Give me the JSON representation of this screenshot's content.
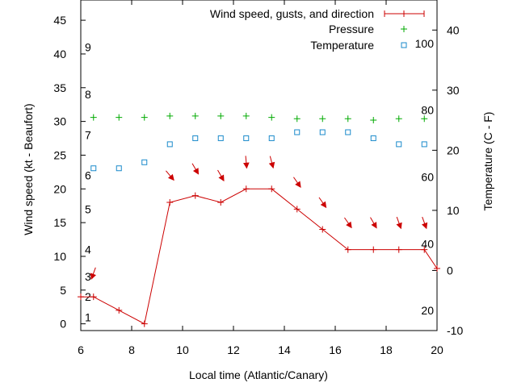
{
  "chart_data": {
    "type": "line",
    "x_axis": {
      "label": "Local time (Atlantic/Canary)",
      "range": [
        6,
        20
      ],
      "ticks": [
        6,
        8,
        10,
        12,
        14,
        16,
        18,
        20
      ]
    },
    "y_left": {
      "label": "Wind speed (kt - Beaufort)",
      "range": [
        -1,
        48
      ],
      "ticks": [
        0,
        5,
        10,
        15,
        20,
        25,
        30,
        35,
        40,
        45
      ]
    },
    "y_right": {
      "label": "Temperature (C - F)",
      "range": [
        -10,
        45
      ],
      "ticks": [
        -10,
        0,
        10,
        20,
        30,
        40
      ]
    },
    "beaufort_labels": [
      {
        "label": "1",
        "kt": 1
      },
      {
        "label": "2",
        "kt": 4
      },
      {
        "label": "3",
        "kt": 7
      },
      {
        "label": "4",
        "kt": 11
      },
      {
        "label": "5",
        "kt": 17
      },
      {
        "label": "6",
        "kt": 22
      },
      {
        "label": "7",
        "kt": 28
      },
      {
        "label": "8",
        "kt": 34
      },
      {
        "label": "9",
        "kt": 41
      }
    ],
    "fahrenheit_labels": [
      {
        "label": "20",
        "celsius": -6.67
      },
      {
        "label": "40",
        "celsius": 4.44
      },
      {
        "label": "60",
        "celsius": 15.56
      },
      {
        "label": "80",
        "celsius": 26.67
      },
      {
        "label": "100",
        "celsius": 37.78
      }
    ],
    "legend": {
      "position": "top-right"
    },
    "series": [
      {
        "name": "Wind speed, gusts, and direction",
        "color": "#cc0000",
        "x": [
          6,
          6.5,
          7.5,
          8.5,
          9.5,
          10.5,
          11.5,
          12.5,
          13.5,
          14.5,
          15.5,
          16.5,
          17.5,
          18.5,
          19.5,
          20
        ],
        "values": [
          4,
          4,
          2,
          0,
          18,
          19,
          18,
          20,
          20,
          17,
          14,
          11,
          11,
          11,
          11,
          8.2
        ]
      },
      {
        "name": "Pressure",
        "color": "#00aa00",
        "marker": "plus",
        "x": [
          6.5,
          7.5,
          8.5,
          9.5,
          10.5,
          11.5,
          12.5,
          13.5,
          14.5,
          15.5,
          16.5,
          17.5,
          18.5,
          19.5
        ],
        "values": [
          30.6,
          30.6,
          30.6,
          30.8,
          30.8,
          30.8,
          30.8,
          30.6,
          30.4,
          30.4,
          30.4,
          30.2,
          30.4,
          30.4
        ]
      },
      {
        "name": "Temperature",
        "color": "#1a8acb",
        "marker": "open-square",
        "axis": "right",
        "x": [
          6.5,
          7.5,
          8.5,
          9.5,
          10.5,
          11.5,
          12.5,
          13.5,
          14.5,
          15.5,
          16.5,
          17.5,
          18.5,
          19.5
        ],
        "values": [
          17,
          17,
          18,
          21,
          22,
          22,
          22,
          22,
          23,
          23,
          23,
          22,
          21,
          21
        ]
      }
    ],
    "gust_direction_arrows": {
      "color": "#cc0000",
      "points": [
        {
          "x": 6.5,
          "y": 7.5,
          "dir_deg": 200
        },
        {
          "x": 9.5,
          "y": 22,
          "dir_deg": 140
        },
        {
          "x": 10.5,
          "y": 23,
          "dir_deg": 150
        },
        {
          "x": 11.5,
          "y": 22,
          "dir_deg": 150
        },
        {
          "x": 12.5,
          "y": 24,
          "dir_deg": 175
        },
        {
          "x": 13.5,
          "y": 24,
          "dir_deg": 165
        },
        {
          "x": 14.5,
          "y": 21,
          "dir_deg": 145
        },
        {
          "x": 15.5,
          "y": 18,
          "dir_deg": 145
        },
        {
          "x": 16.5,
          "y": 15,
          "dir_deg": 145
        },
        {
          "x": 17.5,
          "y": 15,
          "dir_deg": 150
        },
        {
          "x": 18.5,
          "y": 15,
          "dir_deg": 160
        },
        {
          "x": 19.5,
          "y": 15,
          "dir_deg": 160
        }
      ]
    }
  }
}
